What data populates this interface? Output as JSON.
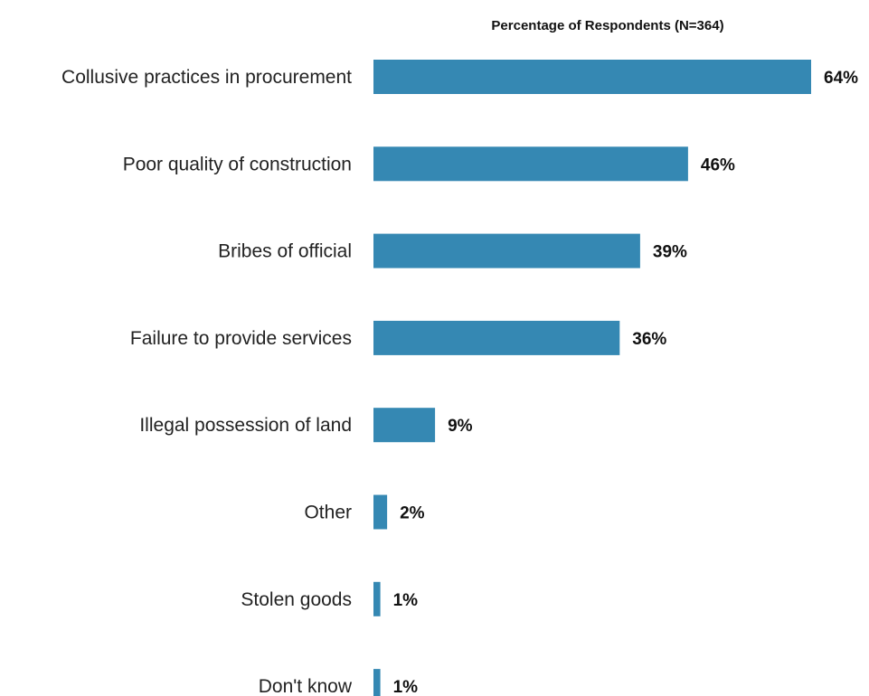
{
  "chart_data": {
    "type": "bar",
    "orientation": "horizontal",
    "title": "Percentage of Respondents (N=364)",
    "categories": [
      "Collusive practices in procurement",
      "Poor quality of construction",
      "Bribes of official",
      "Failure to provide services",
      "Illegal possession of land",
      "Other",
      "Stolen goods",
      "Don't know"
    ],
    "values": [
      64,
      46,
      39,
      36,
      9,
      2,
      1,
      1
    ],
    "value_labels": [
      "64%",
      "46%",
      "39%",
      "36%",
      "9%",
      "2%",
      "1%",
      "1%"
    ],
    "xlim": [
      0,
      64
    ],
    "bar_color": "#3588B3",
    "grid": false,
    "legend": "none"
  }
}
